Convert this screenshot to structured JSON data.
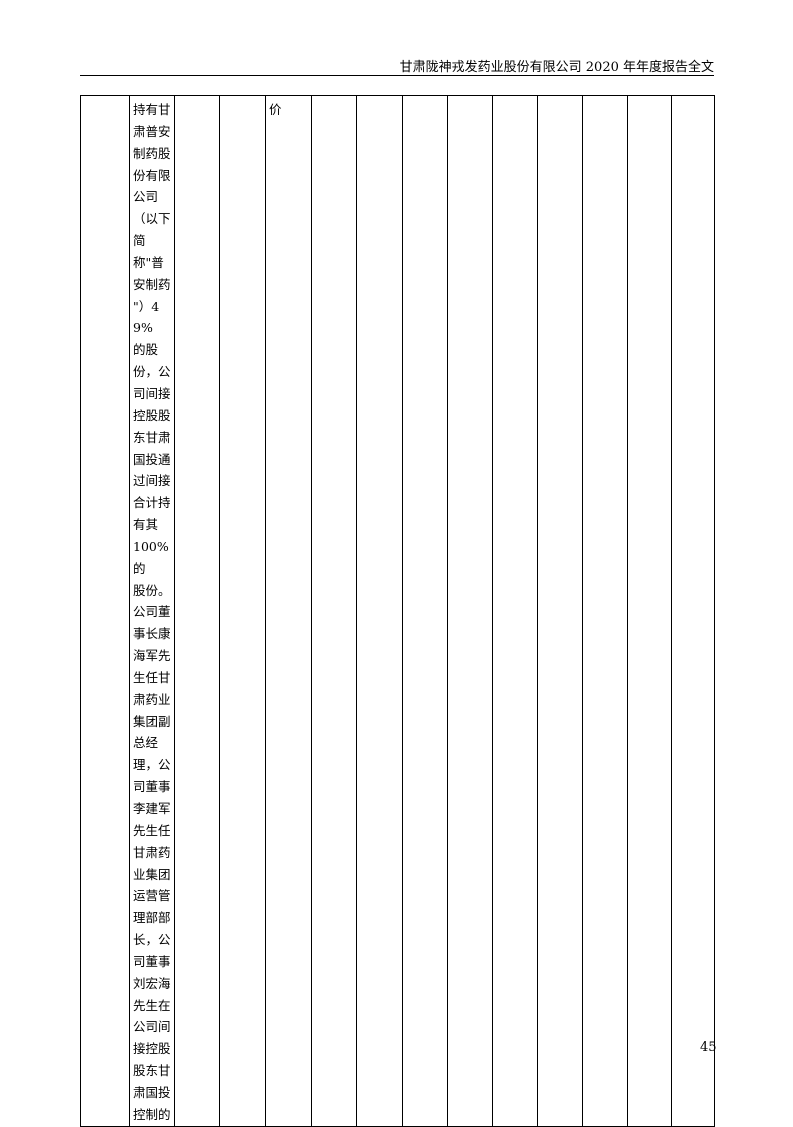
{
  "header": {
    "title": "甘肃陇神戎发药业股份有限公司 2020 年年度报告全文"
  },
  "table": {
    "cells": [
      "",
      "持有甘\n肃普安\n制药股\n份有限\n公司\n（以下\n简称\"普\n安制药\n\"）49%\n的股\n份，公\n司间接\n控股股\n东甘肃\n国投通\n过间接\n合计持\n有其\n100%的\n股份。\n公司董\n事长康\n海军先\n生任甘\n肃药业\n集团副\n总经\n理，公\n司董事\n李建军\n先生任\n甘肃药\n业集团\n运营管\n理部部\n长，公\n司董事\n刘宏海\n先生在\n公司间\n接控股\n股东甘\n肃国投\n控制的",
      "",
      "",
      "价",
      "",
      "",
      "",
      "",
      "",
      "",
      "",
      "",
      ""
    ]
  },
  "footer": {
    "page_number": "45"
  }
}
